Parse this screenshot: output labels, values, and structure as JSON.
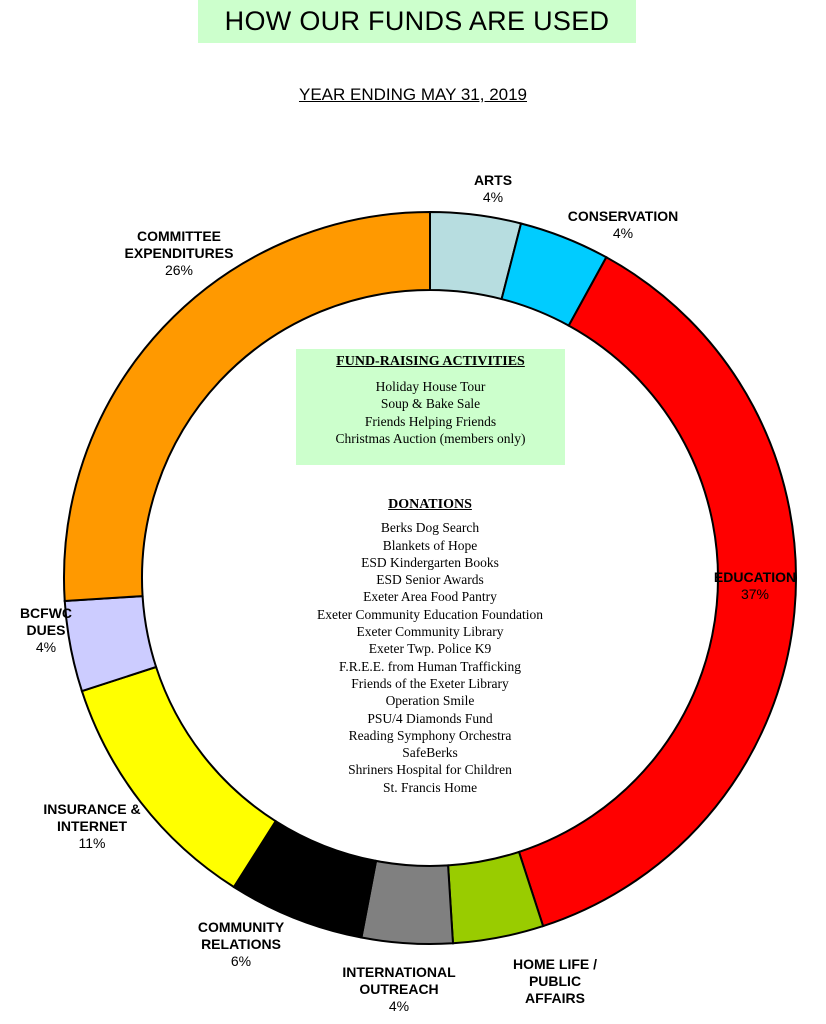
{
  "title": "HOW OUR FUNDS ARE USED",
  "subtitle": "YEAR ENDING MAY 31, 2019",
  "chart_data": {
    "type": "pie",
    "variant": "donut",
    "slices": [
      {
        "label": "ARTS",
        "value": 4,
        "pct_label": "4%",
        "color": "#b7dde0"
      },
      {
        "label": "CONSERVATION",
        "value": 4,
        "pct_label": "4%",
        "color": "#00ccff"
      },
      {
        "label": "EDUCATION",
        "value": 37,
        "pct_label": "37%",
        "color": "#ff0000"
      },
      {
        "label": "HOME LIFE / PUBLIC AFFAIRS",
        "value": 4,
        "pct_label": "",
        "color": "#99cc00"
      },
      {
        "label": "INTERNATIONAL OUTREACH",
        "value": 4,
        "pct_label": "4%",
        "color": "#808080"
      },
      {
        "label": "COMMUNITY RELATIONS",
        "value": 6,
        "pct_label": "6%",
        "color": "#000000"
      },
      {
        "label": "INSURANCE & INTERNET",
        "value": 11,
        "pct_label": "11%",
        "color": "#ffff00"
      },
      {
        "label": "BCFWC DUES",
        "value": 4,
        "pct_label": "4%",
        "color": "#ccccff"
      },
      {
        "label": "COMMITTEE EXPENDITURES",
        "value": 26,
        "pct_label": "26%",
        "color": "#ff9900"
      }
    ]
  },
  "labels": {
    "arts": {
      "lines": [
        "ARTS"
      ],
      "pct": "4%"
    },
    "conservation": {
      "lines": [
        "CONSERVATION"
      ],
      "pct": "4%"
    },
    "education": {
      "lines": [
        "EDUCATION"
      ],
      "pct": "37%"
    },
    "home_life": {
      "lines": [
        "HOME LIFE /",
        "PUBLIC",
        "AFFAIRS"
      ]
    },
    "international": {
      "lines": [
        "INTERNATIONAL",
        "OUTREACH"
      ],
      "pct": "4%"
    },
    "community": {
      "lines": [
        "COMMUNITY",
        "RELATIONS"
      ],
      "pct": "6%"
    },
    "insurance": {
      "lines": [
        "INSURANCE &",
        "INTERNET"
      ],
      "pct": "11%"
    },
    "bcfwc": {
      "lines": [
        "BCFWC",
        "DUES"
      ],
      "pct": "4%"
    },
    "committee": {
      "lines": [
        "COMMITTEE",
        "EXPENDITURES"
      ],
      "pct": "26%"
    }
  },
  "fund_raising": {
    "heading": "FUND-RAISING ACTIVITIES",
    "items": [
      "Holiday House Tour",
      "Soup & Bake Sale",
      "Friends Helping Friends",
      "Christmas Auction (members only)"
    ]
  },
  "donations": {
    "heading": "DONATIONS",
    "items": [
      "Berks Dog Search",
      "Blankets of Hope",
      "ESD Kindergarten Books",
      "ESD Senior Awards",
      "Exeter Area Food Pantry",
      "Exeter Community Education Foundation",
      "Exeter Community Library",
      "Exeter Twp. Police K9",
      "F.R.E.E. from Human Trafficking",
      "Friends of the Exeter Library",
      "Operation Smile",
      "PSU/4 Diamonds Fund",
      "Reading Symphony Orchestra",
      "SafeBerks",
      "Shriners Hospital for Children",
      "St. Francis Home"
    ]
  }
}
